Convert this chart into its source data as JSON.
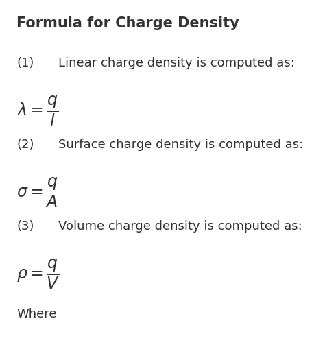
{
  "title": "Formula for Charge Density",
  "background_color": "#ffffff",
  "text_color": "#333333",
  "title_fontsize": 15,
  "body_fontsize": 13,
  "math_fontsize": 15,
  "items": [
    {
      "number": "(1)",
      "description": "Linear charge density is computed as:",
      "formula": "$\\lambda = \\dfrac{q}{l}$"
    },
    {
      "number": "(2)",
      "description": "Surface charge density is computed as:",
      "formula": "$\\sigma = \\dfrac{q}{A}$"
    },
    {
      "number": "(3)",
      "description": "Volume charge density is computed as:",
      "formula": "$\\rho = \\dfrac{q}{V}$"
    }
  ],
  "footer": "Where",
  "figsize": [
    4.74,
    5.03
  ],
  "dpi": 100
}
